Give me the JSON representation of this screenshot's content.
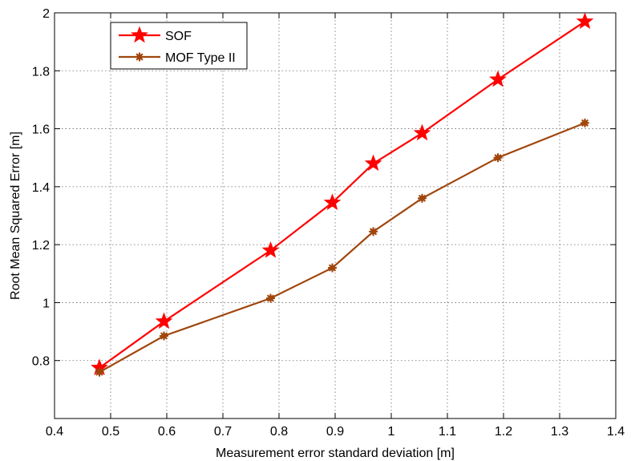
{
  "chart_data": {
    "type": "line",
    "xlabel": "Measurement error standard deviation [m]",
    "ylabel": "Root Mean Squared Error [m]",
    "xlim": [
      0.4,
      1.4
    ],
    "ylim": [
      0.6,
      2.0
    ],
    "xticks": [
      0.4,
      0.5,
      0.6,
      0.7,
      0.8,
      0.9,
      1.0,
      1.1,
      1.2,
      1.3,
      1.4
    ],
    "xtick_labels": [
      "0.4",
      "0.5",
      "0.6",
      "0.7",
      "0.8",
      "0.9",
      "1",
      "1.1",
      "1.2",
      "1.3",
      "1.4"
    ],
    "yticks": [
      0.8,
      1.0,
      1.2,
      1.4,
      1.6,
      1.8,
      2.0
    ],
    "ytick_labels": [
      "0.8",
      "1",
      "1.2",
      "1.4",
      "1.6",
      "1.8",
      "2"
    ],
    "grid": true,
    "legend_position": "top-left",
    "series": [
      {
        "name": "SOF",
        "color": "#ff0000",
        "marker": "star",
        "x": [
          0.48,
          0.595,
          0.785,
          0.895,
          0.968,
          1.055,
          1.19,
          1.345
        ],
        "y": [
          0.775,
          0.935,
          1.18,
          1.345,
          1.48,
          1.585,
          1.77,
          1.97
        ]
      },
      {
        "name": "MOF Type II",
        "color": "#a0460c",
        "marker": "asterisk",
        "x": [
          0.48,
          0.595,
          0.785,
          0.895,
          0.968,
          1.055,
          1.19,
          1.345
        ],
        "y": [
          0.76,
          0.885,
          1.015,
          1.12,
          1.245,
          1.36,
          1.5,
          1.62
        ]
      }
    ]
  }
}
